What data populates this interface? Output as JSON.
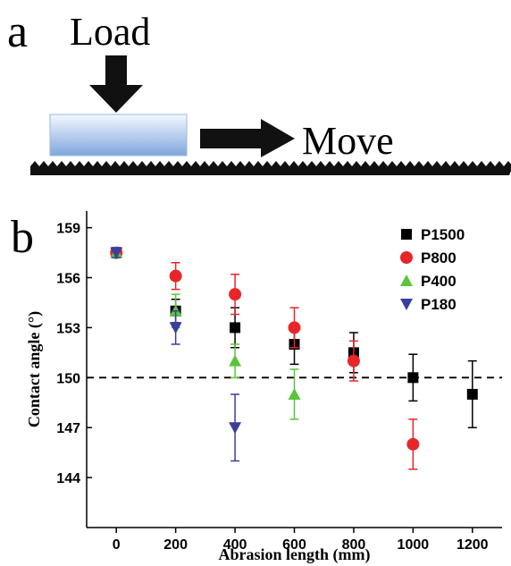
{
  "diagram": {
    "panel_label": "a",
    "load_label": "Load",
    "move_label": "Move"
  },
  "chart_data": {
    "type": "scatter",
    "panel_label": "b",
    "x_label": "Abrasion length (mm)",
    "y_label": "Contact angle (°)",
    "x": [
      0,
      200,
      400,
      600,
      800,
      1000,
      1200
    ],
    "series": [
      {
        "name": "P1500",
        "color": "#000000",
        "marker": "square",
        "values": [
          157.5,
          154,
          153,
          152,
          151.5,
          150,
          149
        ],
        "errors": [
          0.3,
          0.7,
          1.2,
          1.2,
          1.2,
          1.4,
          2
        ]
      },
      {
        "name": "P800",
        "color": "#e8262a",
        "marker": "circle",
        "values": [
          157.5,
          156.1,
          155,
          153,
          151,
          146,
          null
        ],
        "errors": [
          0.3,
          0.8,
          1.2,
          1.2,
          1.2,
          1.5,
          null
        ]
      },
      {
        "name": "P400",
        "color": "#5cc43a",
        "marker": "triangle-up",
        "values": [
          157.5,
          154,
          151,
          149,
          null,
          null,
          null
        ],
        "errors": [
          0.3,
          1,
          1,
          1.5,
          null,
          null,
          null
        ]
      },
      {
        "name": "P180",
        "color": "#3a3f9c",
        "marker": "triangle-down",
        "values": [
          157.5,
          153,
          147,
          null,
          null,
          null,
          null
        ],
        "errors": [
          0.3,
          1,
          2,
          null,
          null,
          null,
          null
        ]
      }
    ],
    "xlim": [
      -100,
      1300
    ],
    "ylim": [
      141,
      160
    ],
    "xticks": [
      0,
      200,
      400,
      600,
      800,
      1000,
      1200
    ],
    "yticks": [
      144,
      147,
      150,
      153,
      156,
      159
    ],
    "reference_line": 150,
    "legend": "upper right"
  }
}
